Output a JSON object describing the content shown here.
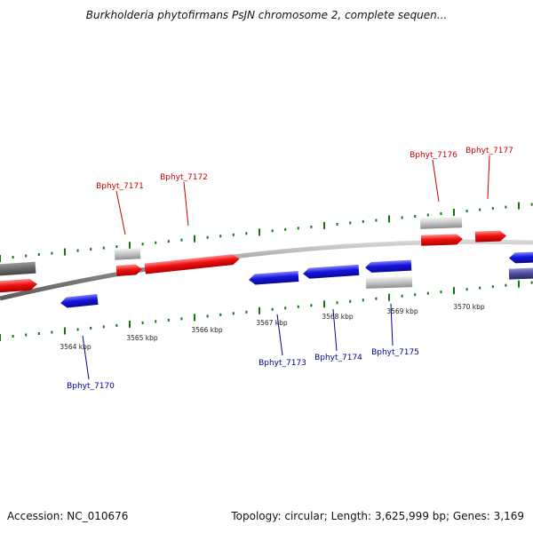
{
  "title": "Burkholderia phytofirmans PsJN chromosome 2, complete sequen...",
  "accession": "Accession: NC_010676",
  "summary": "Topology: circular; Length: 3,625,999 bp; Genes: 3,169",
  "colors": {
    "forward_gene": "#ee1111",
    "reverse_gene": "#1515dd",
    "forward_label": "#cc0000",
    "reverse_label": "#000099",
    "pseudo_gene": "#bdbdbd",
    "backbone": "#777777",
    "tick": "#117711"
  },
  "kbp_labels": [
    "3564 kbp",
    "3565 kbp",
    "3566 kbp",
    "3567 kbp",
    "3568 kbp",
    "3569 kbp",
    "3570 kbp"
  ],
  "forward_gene_labels": [
    "Bphyt_7171",
    "Bphyt_7172",
    "Bphyt_7176",
    "Bphyt_7177"
  ],
  "reverse_gene_labels": [
    "Bphyt_7170",
    "Bphyt_7173",
    "Bphyt_7174",
    "Bphyt_7175"
  ]
}
